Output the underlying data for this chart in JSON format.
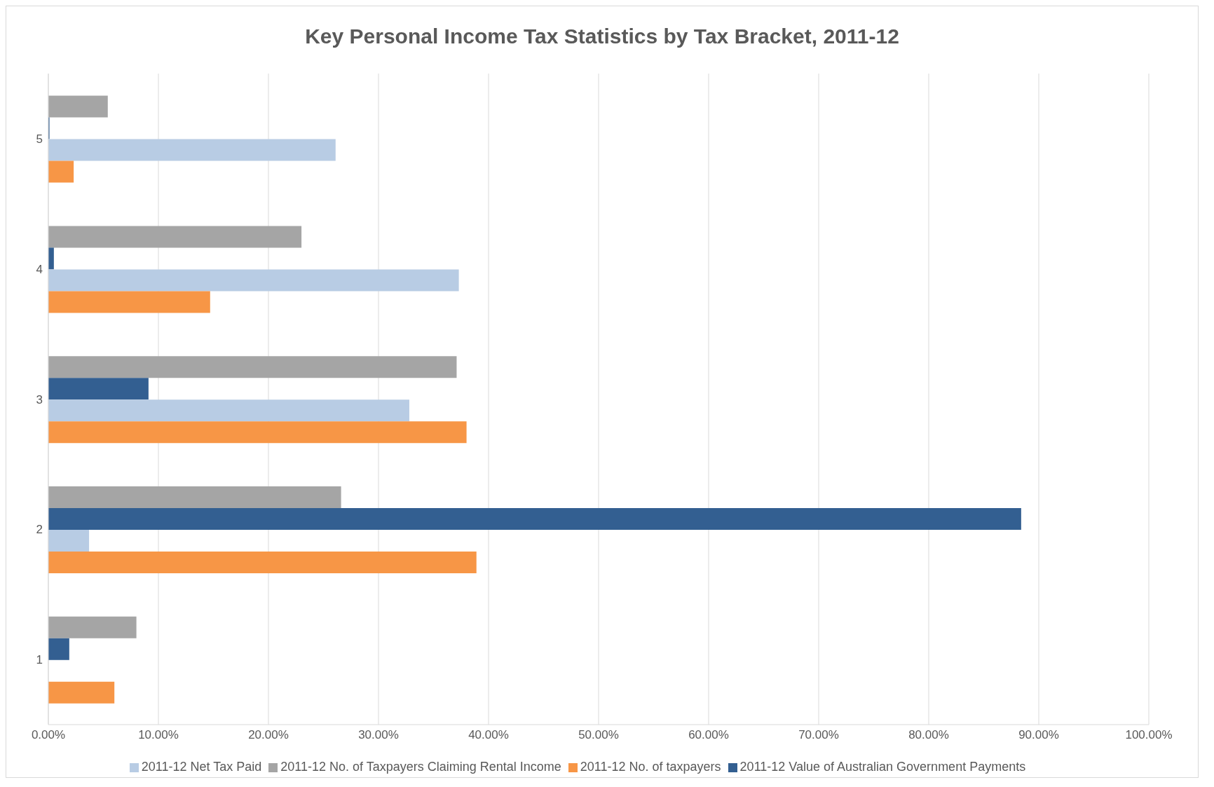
{
  "chart_data": {
    "type": "bar",
    "orientation": "horizontal",
    "title": "Key Personal Income Tax Statistics by Tax Bracket, 2011-12",
    "categories": [
      "5",
      "4",
      "3",
      "2",
      "1"
    ],
    "series": [
      {
        "name": "2011-12 No. of Taxpayers Claiming Rental Income",
        "color": "#a5a5a5",
        "values": [
          5.4,
          23.0,
          37.1,
          26.6,
          8.0
        ]
      },
      {
        "name": "2011-12 Value of Australian Government Payments",
        "color": "#335f91",
        "values": [
          0.1,
          0.5,
          9.1,
          88.4,
          1.9
        ]
      },
      {
        "name": "2011-12 Net Tax Paid",
        "color": "#b8cce4",
        "values": [
          26.1,
          37.3,
          32.8,
          3.7,
          0
        ]
      },
      {
        "name": "2011-12 No. of taxpayers",
        "color": "#f79646",
        "values": [
          2.3,
          14.7,
          38.0,
          38.9,
          6.0
        ]
      }
    ],
    "xlim": [
      0,
      100
    ],
    "xticks": [
      {
        "value": 0,
        "label": "0.00%"
      },
      {
        "value": 10,
        "label": "10.00%"
      },
      {
        "value": 20,
        "label": "20.00%"
      },
      {
        "value": 30,
        "label": "30.00%"
      },
      {
        "value": 40,
        "label": "40.00%"
      },
      {
        "value": 50,
        "label": "50.00%"
      },
      {
        "value": 60,
        "label": "60.00%"
      },
      {
        "value": 70,
        "label": "70.00%"
      },
      {
        "value": 80,
        "label": "80.00%"
      },
      {
        "value": 90,
        "label": "90.00%"
      },
      {
        "value": 100,
        "label": "100.00%"
      }
    ],
    "grid": "x",
    "legend": "bottom"
  }
}
